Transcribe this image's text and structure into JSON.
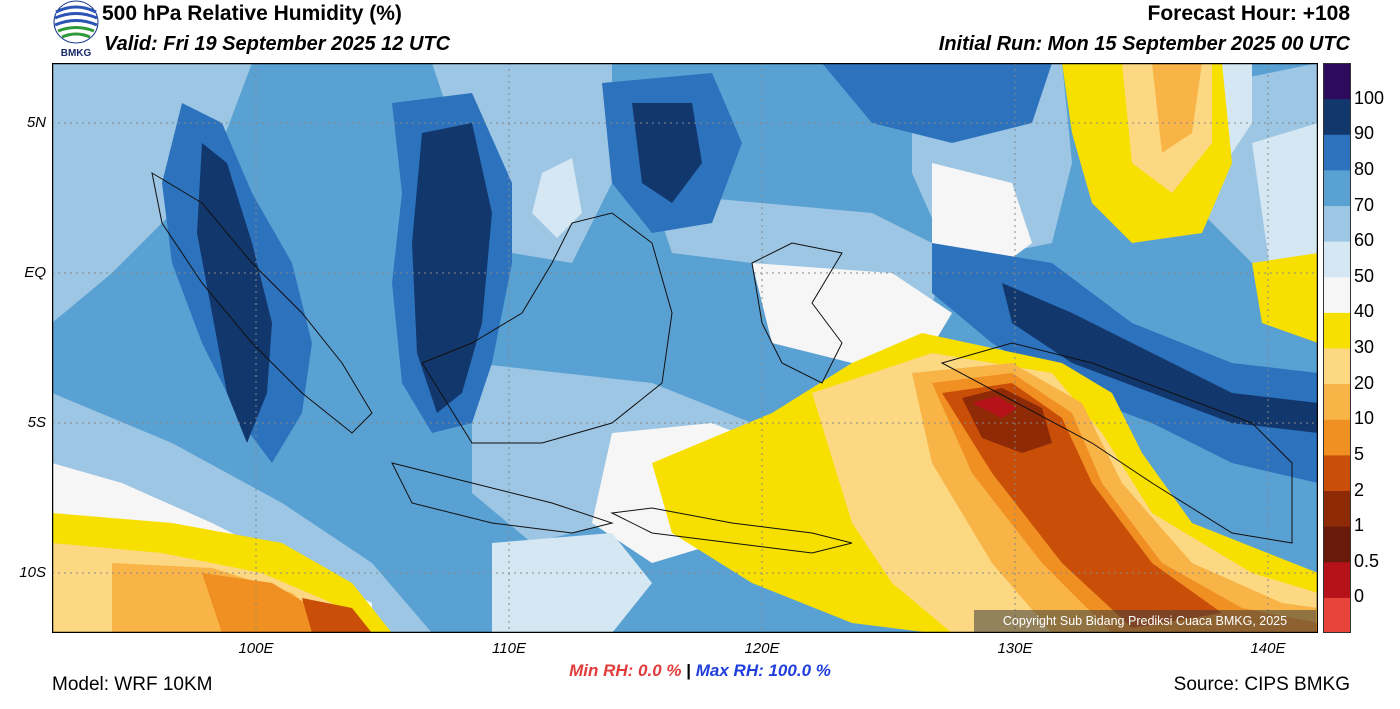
{
  "header": {
    "title": "500 hPa Relative Humidity (%)",
    "valid": "Valid: Fri 19 September 2025 12 UTC",
    "forecast_hour": "Forecast Hour: +108",
    "initial_run": "Initial Run: Mon 15 September 2025 00 UTC",
    "logo_text": "BMKG"
  },
  "map": {
    "lat_labels": [
      "5N",
      "EQ",
      "5S",
      "10S"
    ],
    "lon_labels": [
      "100E",
      "110E",
      "120E",
      "130E",
      "140E"
    ],
    "copyright": "Copyright Sub Bidang Prediksi Cuaca BMKG, 2025"
  },
  "colorbar": {
    "labels": [
      "100",
      "90",
      "80",
      "70",
      "60",
      "50",
      "40",
      "30",
      "20",
      "10",
      "5",
      "2",
      "1",
      "0.5",
      "0"
    ],
    "colors": [
      "#e8443a",
      "#b51219",
      "#6a1a0a",
      "#8f2a06",
      "#c94f08",
      "#f08f22",
      "#f9b447",
      "#fcd883",
      "#f7df00",
      "#f6f6f6",
      "#d5e7f2",
      "#9cc6e3",
      "#5aa1d3",
      "#2c72bd",
      "#12376d",
      "#2d0a5b"
    ]
  },
  "stats": {
    "min_rh": "Min RH:   0.0 %",
    "separator": "|",
    "max_rh": "Max RH: 100.0 %"
  },
  "footer": {
    "model": "Model: WRF 10KM",
    "source": "Source: CIPS BMKG"
  }
}
